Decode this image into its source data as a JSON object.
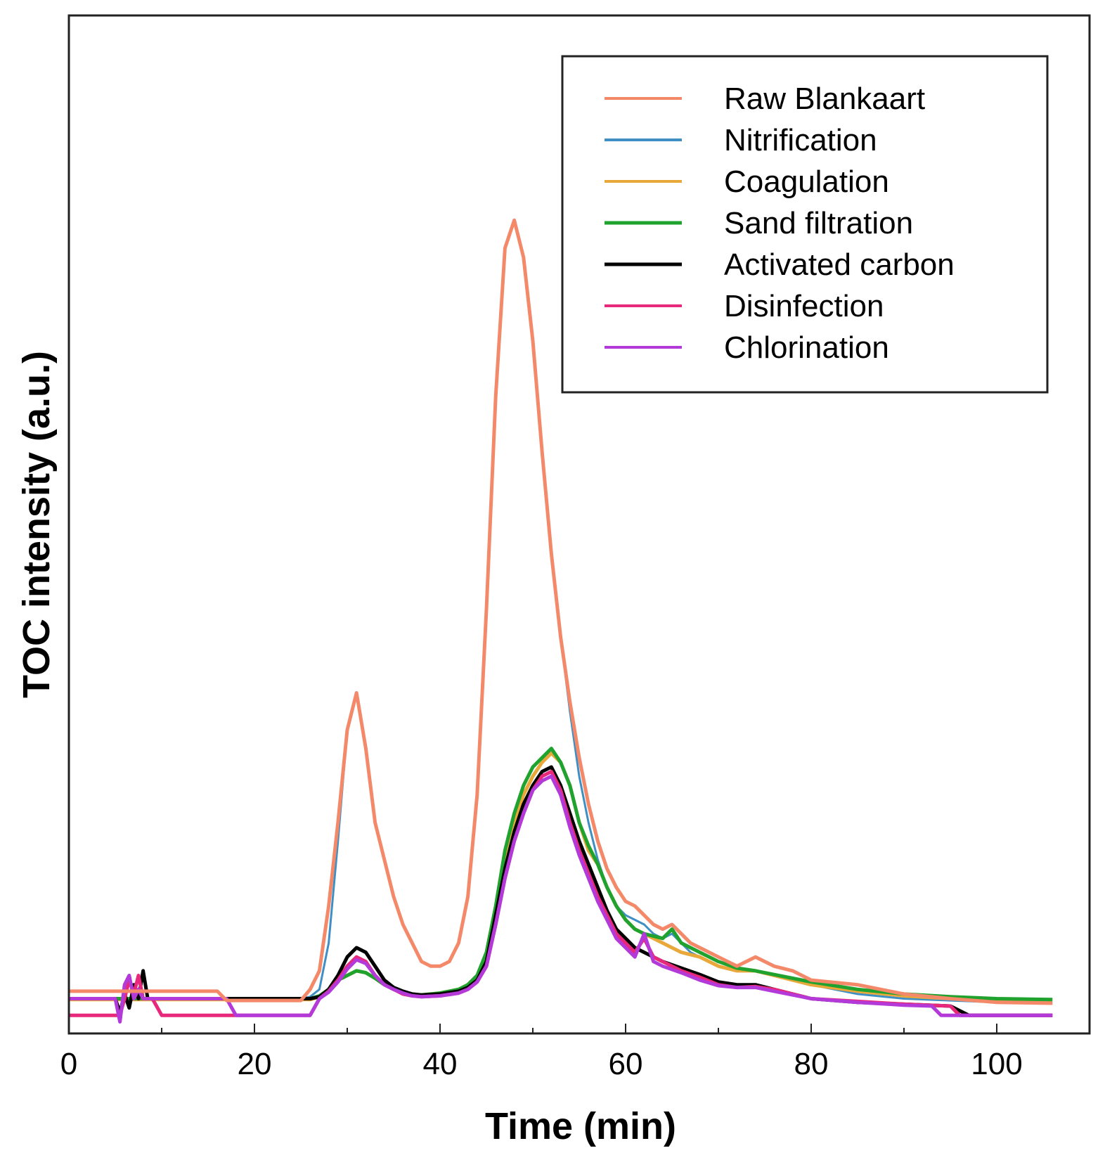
{
  "chart_data": {
    "type": "line",
    "title": "",
    "xlabel": "Time (min)",
    "ylabel": "TOC intensity (a.u.)",
    "xlim": [
      0,
      110
    ],
    "ylim": [
      0,
      100
    ],
    "xticks": [
      0,
      20,
      40,
      60,
      80,
      100
    ],
    "grid": false,
    "legend_position": "top-right",
    "series": [
      {
        "name": "Raw Blankaart",
        "color": "#f4896a",
        "x": [
          0,
          16,
          17,
          25,
          26,
          27,
          28,
          29,
          30,
          31,
          32,
          33,
          34,
          35,
          36,
          37,
          38,
          39,
          40,
          41,
          42,
          43,
          44,
          45,
          46,
          47,
          48,
          49,
          50,
          51,
          52,
          53,
          54,
          55,
          56,
          57,
          58,
          59,
          60,
          61,
          62,
          63,
          64,
          65,
          66,
          67,
          68,
          70,
          72,
          74,
          76,
          78,
          80,
          85,
          90,
          95,
          100,
          106
        ],
        "y": [
          3.8,
          3.8,
          2.8,
          2.8,
          4,
          6,
          13,
          22,
          32,
          36,
          30,
          22,
          18,
          14,
          11,
          9,
          7,
          6.5,
          6.5,
          7,
          9,
          14,
          25,
          45,
          68,
          84,
          87,
          83,
          74,
          62,
          51,
          42,
          35,
          29,
          24,
          20,
          17,
          15,
          13.5,
          13,
          12,
          11,
          10.5,
          11,
          10,
          9,
          8.5,
          7.5,
          6.5,
          7.5,
          6.5,
          6,
          5,
          4.5,
          3.5,
          3,
          2.6,
          2.5
        ]
      },
      {
        "name": "Nitrification",
        "color": "#3f8fc5",
        "x": [
          0,
          25,
          26,
          27,
          28,
          29,
          30,
          31,
          32,
          33,
          34,
          35,
          36,
          37,
          38,
          39,
          40,
          41,
          42,
          43,
          44,
          45,
          46,
          47,
          48,
          49,
          50,
          51,
          52,
          53,
          54,
          55,
          56,
          57,
          58,
          59,
          60,
          61,
          62,
          63,
          64,
          65,
          66,
          67,
          68,
          70,
          72,
          74,
          76,
          78,
          80,
          85,
          90,
          95,
          100,
          106
        ],
        "y": [
          3,
          3,
          3.2,
          4,
          9,
          20,
          32,
          36,
          30,
          22,
          18,
          14,
          11,
          9,
          7,
          6.5,
          6.5,
          7,
          9,
          14,
          25,
          45,
          68,
          84,
          87,
          83,
          74,
          62,
          51,
          42,
          34,
          27,
          22,
          18,
          15,
          13,
          12,
          11.5,
          11,
          10,
          9.5,
          10,
          9,
          8,
          7.5,
          6.5,
          6,
          6,
          5.5,
          5,
          4.5,
          3.5,
          3,
          2.8,
          2.6,
          2.5
        ]
      },
      {
        "name": "Coagulation",
        "color": "#e9a83a",
        "x": [
          0,
          26,
          27,
          28,
          29,
          30,
          31,
          32,
          33,
          34,
          35,
          36,
          37,
          38,
          40,
          42,
          43,
          44,
          45,
          46,
          47,
          48,
          49,
          50,
          51,
          52,
          53,
          54,
          55,
          56,
          57,
          58,
          59,
          60,
          61,
          62,
          64,
          66,
          68,
          70,
          72,
          74,
          76,
          78,
          80,
          85,
          90,
          95,
          100,
          106
        ],
        "y": [
          2.9,
          2.9,
          3.2,
          4,
          5,
          5.5,
          6,
          5.8,
          5.2,
          4.5,
          4,
          3.6,
          3.4,
          3.4,
          3.6,
          4,
          4.5,
          5.5,
          7.5,
          12,
          18,
          22,
          25,
          27,
          28.5,
          29.5,
          28.5,
          26,
          22,
          19,
          17.5,
          15,
          13,
          11.5,
          10.5,
          10,
          9,
          8,
          7.5,
          6.5,
          6,
          6,
          5.5,
          5,
          4.5,
          3.8,
          3.3,
          3,
          2.9,
          2.8
        ]
      },
      {
        "name": "Sand filtration",
        "color": "#1fa22e",
        "x": [
          0,
          26,
          27,
          28,
          29,
          30,
          31,
          32,
          33,
          34,
          35,
          36,
          37,
          38,
          40,
          42,
          43,
          44,
          45,
          46,
          47,
          48,
          49,
          50,
          51,
          52,
          53,
          54,
          55,
          56,
          57,
          58,
          59,
          60,
          61,
          62,
          64,
          65,
          66,
          68,
          70,
          72,
          74,
          76,
          78,
          80,
          85,
          90,
          95,
          100,
          106
        ],
        "y": [
          3,
          3,
          3.3,
          4,
          5,
          5.5,
          6,
          5.8,
          5.2,
          4.5,
          4,
          3.6,
          3.4,
          3.4,
          3.6,
          4,
          4.5,
          5.5,
          8,
          13,
          19,
          23,
          26,
          28,
          29,
          30,
          28.5,
          26,
          22,
          19.5,
          17.5,
          15,
          13,
          11.5,
          10.5,
          10,
          9.5,
          10.5,
          9,
          8,
          7,
          6.3,
          6,
          5.6,
          5.2,
          4.8,
          4,
          3.5,
          3.2,
          3,
          2.9
        ]
      },
      {
        "name": "Activated carbon",
        "color": "#000000",
        "x": [
          0,
          5,
          5.5,
          6,
          6.5,
          7,
          7.5,
          8,
          8.5,
          26,
          27,
          28,
          29,
          30,
          31,
          32,
          33,
          34,
          35,
          36,
          37,
          38,
          40,
          42,
          43,
          44,
          45,
          46,
          47,
          48,
          49,
          50,
          51,
          52,
          53,
          54,
          55,
          56,
          57,
          58,
          59,
          60,
          61,
          62,
          64,
          66,
          68,
          70,
          72,
          74,
          76,
          78,
          80,
          85,
          90,
          95,
          97,
          100,
          106
        ],
        "y": [
          3,
          3,
          1.5,
          3.5,
          2,
          4.5,
          3,
          6,
          3,
          3,
          3.2,
          4,
          5.5,
          7.5,
          8.5,
          8,
          6.5,
          5,
          4.2,
          3.8,
          3.5,
          3.4,
          3.5,
          3.8,
          4.2,
          5,
          7,
          12,
          17,
          21,
          24,
          26,
          27.5,
          28,
          26,
          23,
          20,
          17.5,
          15,
          12.5,
          10.5,
          9.5,
          8.5,
          8,
          7,
          6.3,
          5.6,
          4.8,
          4.5,
          4.5,
          4,
          3.5,
          3,
          2.6,
          2.4,
          2.2,
          1.2,
          1.2,
          1.2
        ]
      },
      {
        "name": "Disinfection",
        "color": "#e8287a",
        "x": [
          0,
          5.5,
          6,
          6.5,
          7,
          7.5,
          8,
          9,
          10,
          26,
          27,
          28,
          29,
          30,
          31,
          32,
          33,
          34,
          35,
          36,
          37,
          38,
          40,
          42,
          43,
          44,
          45,
          46,
          47,
          48,
          49,
          50,
          51,
          52,
          53,
          54,
          55,
          56,
          57,
          58,
          59,
          60,
          61,
          62,
          63,
          64,
          66,
          68,
          70,
          72,
          74,
          76,
          78,
          80,
          85,
          90,
          95,
          96,
          100,
          106
        ],
        "y": [
          1.2,
          1.2,
          3,
          5,
          3.5,
          5.5,
          3,
          3,
          1.2,
          1.2,
          3,
          3.8,
          5,
          6.5,
          7.5,
          7,
          5.5,
          4.5,
          4,
          3.5,
          3.3,
          3.2,
          3.3,
          3.6,
          4,
          4.8,
          6.5,
          11,
          16,
          20,
          23,
          25.5,
          27,
          27.5,
          25.5,
          22,
          19,
          16.5,
          14,
          12,
          10,
          9,
          8,
          9.5,
          7.5,
          7,
          6,
          5.3,
          4.5,
          4.2,
          4.3,
          4,
          3.5,
          3,
          2.7,
          2.4,
          2.2,
          1.2,
          1.2,
          1.2
        ]
      },
      {
        "name": "Chlorination",
        "color": "#b33ad8",
        "x": [
          0,
          5,
          5.5,
          6,
          6.5,
          7,
          7.5,
          8,
          9,
          17,
          18,
          26,
          27,
          28,
          29,
          30,
          31,
          32,
          33,
          34,
          35,
          36,
          37,
          38,
          40,
          42,
          43,
          44,
          45,
          46,
          47,
          48,
          49,
          50,
          51,
          52,
          53,
          54,
          55,
          56,
          57,
          58,
          59,
          60,
          61,
          62,
          63,
          64,
          66,
          68,
          70,
          72,
          74,
          76,
          78,
          80,
          85,
          90,
          93,
          94,
          97,
          100,
          106
        ],
        "y": [
          3,
          3,
          0.5,
          4.5,
          5.5,
          3,
          4,
          3,
          3,
          3,
          1.2,
          1.2,
          3,
          3.7,
          4.8,
          6.2,
          7.2,
          6.8,
          5.5,
          4.5,
          4,
          3.6,
          3.3,
          3.2,
          3.3,
          3.6,
          4,
          4.8,
          6.5,
          11,
          16,
          20,
          23,
          25.5,
          26.5,
          27,
          25,
          21.5,
          18.5,
          16,
          13.5,
          11.5,
          9.5,
          8.5,
          7.5,
          10,
          7,
          6.5,
          5.8,
          5,
          4.4,
          4.2,
          4.2,
          3.8,
          3.4,
          3,
          2.6,
          2.3,
          2.2,
          1.2,
          1.2,
          1.2,
          1.2
        ]
      }
    ]
  }
}
